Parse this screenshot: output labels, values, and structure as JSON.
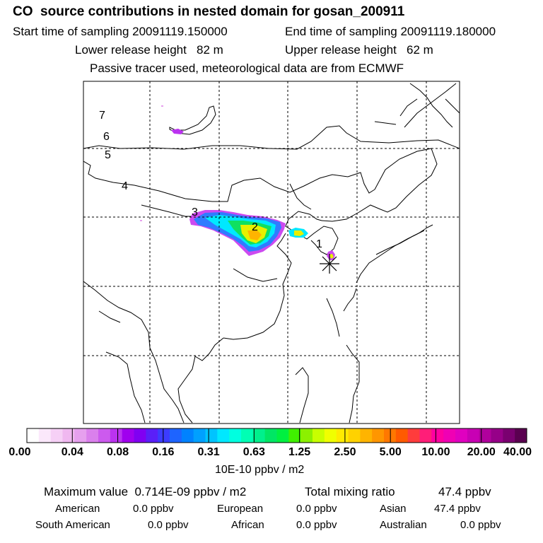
{
  "header": {
    "title": "CO  source contributions in nested domain for gosan_200911",
    "start_label": "Start time of sampling 20091119.150000",
    "end_label": "End time of sampling 20091119.180000",
    "lower_label": "Lower release height   82 m",
    "upper_label": "Upper release height   62 m",
    "info": "Passive tracer used, meteorological data are from ECMWF"
  },
  "map": {
    "day_labels": [
      "1",
      "2",
      "3",
      "4",
      "5",
      "6",
      "7"
    ],
    "receptor_marker": "asterisk-marker"
  },
  "colorbar": {
    "ticks": [
      "0.00",
      "0.04",
      "0.08",
      "0.16",
      "0.31",
      "0.63",
      "1.25",
      "2.50",
      "5.00",
      "10.00",
      "20.00",
      "40.00"
    ],
    "unit": "10E-10 ppbv / m2",
    "colors": [
      "#ffffff",
      "#fbe8fb",
      "#f6d0f6",
      "#f0b8f0",
      "#e6a0ee",
      "#da80ec",
      "#cc5aee",
      "#bb33f0",
      "#a000ee",
      "#8000f2",
      "#5a1ff8",
      "#3c3cff",
      "#1e64ff",
      "#0082ff",
      "#00a0ff",
      "#00c4ff",
      "#00e8ff",
      "#00ffe0",
      "#00ffb4",
      "#00f08c",
      "#00e664",
      "#00f040",
      "#40f000",
      "#8cf000",
      "#c8ff00",
      "#f0ff00",
      "#ffeb00",
      "#ffd200",
      "#ffb400",
      "#ff9600",
      "#ff7800",
      "#ff5a00",
      "#ff3c3c",
      "#ff1e78",
      "#ff00a0",
      "#f000b4",
      "#e000c0",
      "#c800b4",
      "#b0009c",
      "#960088",
      "#7a0070",
      "#5a0050"
    ]
  },
  "summary": {
    "max_label": "Maximum value  0.714E-09 ppbv / m2",
    "total_label": "Total mixing ratio",
    "total_value": "47.4 ppbv",
    "regions": [
      {
        "name": "American",
        "value": "0.0 ppbv"
      },
      {
        "name": "European",
        "value": "0.0 ppbv"
      },
      {
        "name": "Asian",
        "value": "47.4 ppbv"
      },
      {
        "name": "South American",
        "value": "0.0 ppbv"
      },
      {
        "name": "African",
        "value": "0.0 ppbv"
      },
      {
        "name": "Australian",
        "value": "0.0 ppbv"
      }
    ]
  }
}
